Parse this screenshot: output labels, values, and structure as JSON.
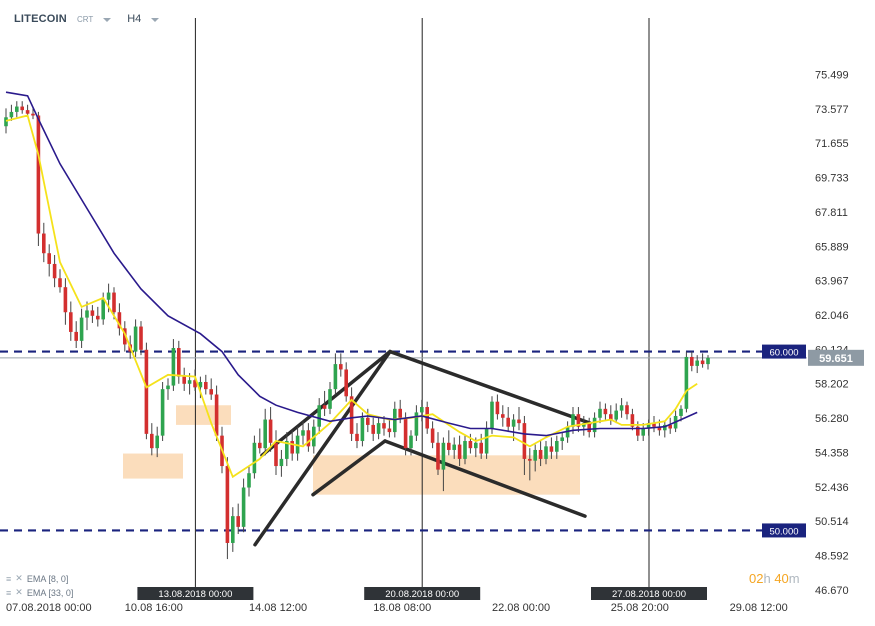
{
  "header": {
    "symbol": "LITECOIN",
    "provider": "CRT",
    "timeframe": "H4"
  },
  "indicators": [
    {
      "menu_icon": "list-icon",
      "close_icon": "close-icon",
      "label": "EMA [8, 0]"
    },
    {
      "menu_icon": "list-icon",
      "close_icon": "close-icon",
      "label": "EMA [33, 0]"
    }
  ],
  "countdown": {
    "hours": "02",
    "h_unit": "h",
    "minutes": "40",
    "m_unit": "m"
  },
  "colors": {
    "up": "#2ea44f",
    "down": "#d32f2f",
    "ema_fast": "#f5e21b",
    "ema_slow": "#2a1a8c",
    "level": "#1a237e",
    "zone": "#fad7b0",
    "pattern": "#2b2b2b",
    "price_tag": "#8e9aa4"
  },
  "chart_data": {
    "type": "candlestick",
    "title": "",
    "xlabel": "",
    "ylabel": "",
    "ylim": [
      46.67,
      77.421
    ],
    "y_ticks": [
      "75.499",
      "73.577",
      "71.655",
      "69.733",
      "67.811",
      "65.889",
      "63.967",
      "62.046",
      "60.124",
      "58.202",
      "56.280",
      "54.358",
      "52.436",
      "50.514",
      "48.592",
      "46.670"
    ],
    "x_ticks": [
      "07.08.2018 00:00",
      "10.08 16:00",
      "14.08 12:00",
      "18.08 08:00",
      "22.08 00:00",
      "25.08 20:00",
      "29.08 12:00"
    ],
    "x_tick_index": [
      0,
      22,
      45,
      68,
      90,
      112,
      134
    ],
    "vlines": [
      {
        "label": "13.08.2018 00:00",
        "index": 36
      },
      {
        "label": "20.08.2018 00:00",
        "index": 78
      },
      {
        "label": "27.08.2018 00:00",
        "index": 120
      }
    ],
    "levels": [
      {
        "label": "60.000",
        "value": 60.0
      },
      {
        "label": "50.000",
        "value": 50.0
      }
    ],
    "current_price": {
      "label": "59.651",
      "value": 59.651
    },
    "series": [
      {
        "name": "EMA [8, 0]",
        "type": "line",
        "color": "#f5e21b",
        "values": [
          [
            0,
            72.9
          ],
          [
            4,
            73.2
          ],
          [
            6,
            71.0
          ],
          [
            10,
            65.0
          ],
          [
            14,
            62.5
          ],
          [
            18,
            63.0
          ],
          [
            22,
            61.0
          ],
          [
            26,
            58.0
          ],
          [
            30,
            58.7
          ],
          [
            35,
            58.6
          ],
          [
            38,
            56.0
          ],
          [
            42,
            53.0
          ],
          [
            47,
            54.0
          ],
          [
            50,
            55.0
          ],
          [
            55,
            54.7
          ],
          [
            60,
            56.0
          ],
          [
            64,
            57.3
          ],
          [
            67,
            56.5
          ],
          [
            71,
            56.2
          ],
          [
            75,
            56.3
          ],
          [
            79,
            56.5
          ],
          [
            84,
            55.5
          ],
          [
            87,
            55.0
          ],
          [
            90,
            55.3
          ],
          [
            94,
            55.2
          ],
          [
            97,
            54.7
          ],
          [
            100,
            55.2
          ],
          [
            104,
            55.8
          ],
          [
            108,
            56.0
          ],
          [
            112,
            56.2
          ],
          [
            114,
            55.9
          ],
          [
            118,
            55.9
          ],
          [
            122,
            56.1
          ],
          [
            124,
            56.8
          ],
          [
            126,
            57.8
          ],
          [
            128,
            58.2
          ]
        ]
      },
      {
        "name": "EMA [33, 0]",
        "type": "line",
        "color": "#2a1a8c",
        "values": [
          [
            0,
            74.5
          ],
          [
            4,
            74.3
          ],
          [
            6,
            73.0
          ],
          [
            10,
            70.5
          ],
          [
            15,
            68.0
          ],
          [
            20,
            65.5
          ],
          [
            25,
            63.5
          ],
          [
            30,
            62.0
          ],
          [
            36,
            61.0
          ],
          [
            40,
            60.0
          ],
          [
            43,
            58.7
          ],
          [
            47,
            57.5
          ],
          [
            50,
            57.0
          ],
          [
            54,
            56.6
          ],
          [
            60,
            56.1
          ],
          [
            64,
            56.3
          ],
          [
            67,
            56.4
          ],
          [
            72,
            56.2
          ],
          [
            77,
            56.4
          ],
          [
            82,
            56.0
          ],
          [
            86,
            55.7
          ],
          [
            90,
            55.7
          ],
          [
            96,
            55.4
          ],
          [
            100,
            55.3
          ],
          [
            105,
            55.6
          ],
          [
            110,
            55.7
          ],
          [
            114,
            55.7
          ],
          [
            118,
            55.7
          ],
          [
            122,
            55.8
          ],
          [
            125,
            56.2
          ],
          [
            128,
            56.6
          ]
        ]
      }
    ],
    "candles": [
      [
        72.6,
        73.6,
        72.2,
        73.1
      ],
      [
        73.1,
        73.8,
        72.9,
        73.4
      ],
      [
        73.4,
        74.0,
        73.1,
        73.7
      ],
      [
        73.7,
        74.0,
        73.3,
        73.5
      ],
      [
        73.5,
        73.8,
        73.2,
        73.3
      ],
      [
        73.3,
        73.6,
        73.0,
        73.2
      ],
      [
        73.2,
        73.4,
        65.9,
        66.6
      ],
      [
        66.6,
        67.2,
        65.0,
        65.5
      ],
      [
        65.5,
        66.0,
        64.2,
        64.9
      ],
      [
        64.9,
        65.4,
        63.6,
        64.1
      ],
      [
        64.1,
        64.6,
        63.3,
        63.6
      ],
      [
        63.6,
        64.1,
        61.5,
        62.2
      ],
      [
        62.2,
        62.8,
        60.6,
        61.1
      ],
      [
        61.1,
        61.7,
        60.2,
        60.6
      ],
      [
        60.6,
        62.4,
        60.2,
        61.9
      ],
      [
        61.9,
        62.8,
        61.2,
        62.3
      ],
      [
        62.3,
        62.6,
        61.6,
        62.0
      ],
      [
        62.0,
        62.5,
        61.4,
        61.8
      ],
      [
        61.8,
        63.3,
        61.5,
        62.9
      ],
      [
        62.9,
        63.8,
        62.2,
        63.3
      ],
      [
        63.3,
        63.6,
        61.8,
        62.2
      ],
      [
        62.2,
        62.7,
        60.9,
        61.3
      ],
      [
        61.3,
        61.7,
        60.0,
        60.4
      ],
      [
        60.4,
        60.9,
        59.6,
        60.0
      ],
      [
        60.0,
        61.8,
        59.7,
        61.4
      ],
      [
        61.4,
        61.7,
        59.8,
        60.1
      ],
      [
        60.1,
        60.5,
        55.1,
        55.4
      ],
      [
        55.4,
        56.0,
        54.2,
        54.6
      ],
      [
        54.6,
        55.8,
        54.1,
        55.3
      ],
      [
        55.3,
        58.3,
        55.0,
        57.9
      ],
      [
        57.9,
        58.5,
        57.3,
        58.1
      ],
      [
        58.1,
        60.7,
        57.8,
        60.2
      ],
      [
        60.2,
        60.6,
        58.2,
        58.6
      ],
      [
        58.6,
        59.1,
        57.8,
        58.2
      ],
      [
        58.2,
        58.8,
        57.6,
        58.4
      ],
      [
        58.4,
        59.0,
        57.8,
        58.0
      ],
      [
        58.0,
        58.6,
        57.4,
        58.3
      ],
      [
        58.3,
        58.7,
        57.6,
        57.9
      ],
      [
        57.9,
        58.5,
        57.3,
        57.6
      ],
      [
        57.6,
        58.1,
        55.0,
        55.3
      ],
      [
        55.3,
        55.8,
        53.2,
        53.6
      ],
      [
        53.6,
        54.1,
        48.4,
        49.3
      ],
      [
        49.3,
        51.3,
        48.8,
        50.8
      ],
      [
        50.8,
        51.5,
        49.8,
        50.2
      ],
      [
        50.2,
        52.9,
        49.9,
        52.4
      ],
      [
        52.4,
        53.6,
        51.9,
        53.2
      ],
      [
        53.2,
        55.3,
        52.9,
        54.9
      ],
      [
        54.9,
        55.7,
        54.3,
        54.6
      ],
      [
        54.6,
        56.8,
        54.2,
        56.2
      ],
      [
        56.2,
        56.9,
        54.4,
        54.9
      ],
      [
        54.9,
        55.6,
        53.1,
        53.6
      ],
      [
        53.6,
        54.5,
        53.0,
        54.0
      ],
      [
        54.0,
        55.5,
        53.6,
        55.0
      ],
      [
        55.0,
        55.6,
        53.9,
        54.3
      ],
      [
        54.3,
        55.8,
        53.9,
        55.3
      ],
      [
        55.3,
        56.1,
        54.8,
        55.6
      ],
      [
        55.6,
        56.0,
        54.4,
        54.7
      ],
      [
        54.7,
        56.2,
        54.3,
        55.8
      ],
      [
        55.8,
        57.4,
        55.4,
        57.0
      ],
      [
        57.0,
        57.8,
        56.4,
        56.8
      ],
      [
        56.8,
        58.3,
        56.5,
        57.9
      ],
      [
        57.9,
        59.9,
        57.6,
        59.3
      ],
      [
        59.3,
        59.9,
        58.6,
        59.0
      ],
      [
        59.0,
        59.4,
        57.2,
        57.5
      ],
      [
        57.5,
        58.0,
        55.0,
        55.4
      ],
      [
        55.4,
        56.0,
        54.6,
        55.0
      ],
      [
        55.0,
        56.6,
        54.7,
        56.3
      ],
      [
        56.3,
        56.8,
        55.5,
        55.9
      ],
      [
        55.9,
        56.3,
        55.0,
        55.4
      ],
      [
        55.4,
        56.3,
        55.1,
        56.0
      ],
      [
        56.0,
        56.4,
        55.3,
        55.7
      ],
      [
        55.7,
        56.2,
        55.2,
        55.5
      ],
      [
        55.5,
        57.2,
        55.2,
        56.8
      ],
      [
        56.8,
        57.3,
        56.0,
        56.3
      ],
      [
        56.3,
        56.6,
        54.2,
        54.6
      ],
      [
        54.6,
        55.6,
        54.2,
        55.3
      ],
      [
        55.3,
        57.0,
        55.0,
        56.6
      ],
      [
        56.6,
        57.3,
        56.1,
        56.9
      ],
      [
        56.9,
        57.2,
        55.4,
        55.7
      ],
      [
        55.7,
        56.1,
        54.6,
        54.9
      ],
      [
        54.9,
        55.5,
        53.1,
        53.4
      ],
      [
        53.4,
        55.2,
        52.2,
        54.9
      ],
      [
        54.9,
        55.6,
        54.2,
        54.5
      ],
      [
        54.5,
        55.2,
        54.0,
        54.8
      ],
      [
        54.8,
        55.3,
        53.6,
        54.0
      ],
      [
        54.0,
        55.3,
        53.7,
        55.0
      ],
      [
        55.0,
        55.4,
        54.3,
        54.6
      ],
      [
        54.6,
        55.2,
        54.1,
        54.9
      ],
      [
        54.9,
        55.4,
        54.0,
        54.3
      ],
      [
        54.3,
        56.1,
        54.0,
        55.7
      ],
      [
        55.7,
        57.5,
        55.4,
        57.2
      ],
      [
        57.2,
        57.6,
        56.2,
        56.5
      ],
      [
        56.5,
        57.0,
        55.8,
        56.3
      ],
      [
        56.3,
        56.9,
        55.5,
        55.8
      ],
      [
        55.8,
        56.5,
        55.0,
        56.2
      ],
      [
        56.2,
        56.9,
        55.6,
        56.0
      ],
      [
        56.0,
        56.4,
        53.1,
        54.0
      ],
      [
        54.0,
        54.6,
        52.8,
        53.9
      ],
      [
        53.9,
        54.8,
        53.3,
        54.5
      ],
      [
        54.5,
        55.0,
        53.6,
        54.0
      ],
      [
        54.0,
        55.0,
        53.7,
        54.7
      ],
      [
        54.7,
        55.2,
        54.0,
        54.4
      ],
      [
        54.4,
        55.3,
        54.0,
        55.0
      ],
      [
        55.0,
        55.5,
        54.5,
        55.2
      ],
      [
        55.2,
        56.1,
        54.9,
        55.8
      ],
      [
        55.8,
        56.9,
        55.4,
        56.5
      ],
      [
        56.5,
        56.9,
        55.5,
        55.8
      ],
      [
        55.8,
        56.4,
        55.3,
        56.0
      ],
      [
        56.0,
        56.3,
        55.2,
        55.5
      ],
      [
        55.5,
        56.6,
        55.2,
        56.3
      ],
      [
        56.3,
        57.2,
        56.0,
        56.8
      ],
      [
        56.8,
        57.1,
        56.2,
        56.5
      ],
      [
        56.5,
        57.0,
        55.9,
        56.2
      ],
      [
        56.2,
        57.1,
        56.0,
        56.7
      ],
      [
        56.7,
        57.4,
        56.3,
        57.0
      ],
      [
        57.0,
        57.2,
        56.2,
        56.5
      ],
      [
        56.5,
        56.8,
        55.6,
        55.8
      ],
      [
        55.8,
        56.1,
        55.0,
        55.3
      ],
      [
        55.3,
        56.0,
        55.0,
        55.7
      ],
      [
        55.7,
        56.2,
        55.3,
        56.0
      ],
      [
        56.0,
        56.4,
        55.5,
        55.8
      ],
      [
        55.8,
        56.2,
        55.3,
        55.6
      ],
      [
        55.6,
        56.1,
        55.2,
        55.9
      ],
      [
        55.9,
        56.3,
        55.4,
        55.7
      ],
      [
        55.7,
        56.7,
        55.5,
        56.4
      ],
      [
        56.4,
        57.0,
        56.1,
        56.8
      ],
      [
        56.8,
        60.0,
        56.6,
        59.7
      ],
      [
        59.7,
        60.0,
        58.9,
        59.2
      ],
      [
        59.2,
        59.8,
        58.8,
        59.5
      ],
      [
        59.5,
        59.9,
        59.1,
        59.3
      ],
      [
        59.3,
        59.8,
        59.0,
        59.65
      ]
    ]
  }
}
